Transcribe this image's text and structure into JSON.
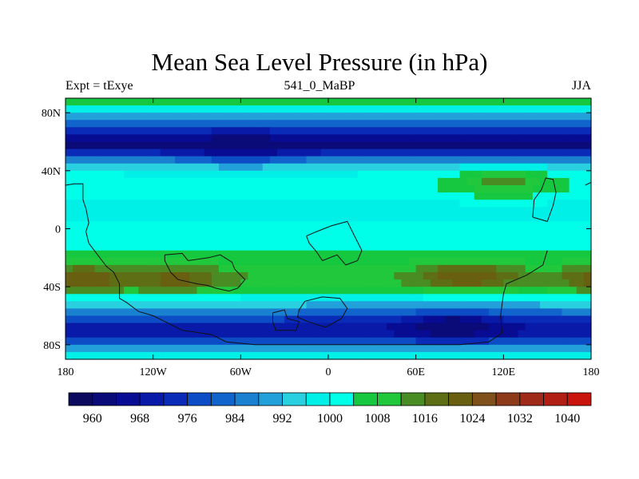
{
  "chart_data": {
    "type": "heatmap",
    "title": "Mean Sea Level Pressure (in hPa)",
    "left_label": "Expt = tExye",
    "center_label": "541_0_MaBP",
    "right_label": "JJA",
    "x_ticks": [
      "180",
      "120W",
      "60W",
      "0",
      "60E",
      "120E",
      "180"
    ],
    "x_tick_values": [
      -180,
      -120,
      -60,
      0,
      60,
      120,
      180
    ],
    "y_ticks": [
      "80N",
      "40N",
      "0",
      "40S",
      "80S"
    ],
    "y_tick_values": [
      80,
      40,
      0,
      -40,
      -80
    ],
    "xlim": [
      -180,
      180
    ],
    "ylim": [
      -90,
      90
    ],
    "colorbar": {
      "levels": [
        956,
        960,
        964,
        968,
        972,
        976,
        980,
        984,
        988,
        992,
        996,
        1000,
        1004,
        1008,
        1012,
        1016,
        1020,
        1024,
        1028,
        1032,
        1036,
        1040,
        1044
      ],
      "tick_labels": [
        "960",
        "968",
        "976",
        "984",
        "992",
        "1000",
        "1008",
        "1016",
        "1024",
        "1032",
        "1040"
      ],
      "tick_values": [
        960,
        968,
        976,
        984,
        992,
        1000,
        1008,
        1016,
        1024,
        1032,
        1040
      ],
      "colors": [
        "#0c0a5e",
        "#0a0a78",
        "#080c92",
        "#0a1aa8",
        "#0a2ab8",
        "#0c4cc4",
        "#1064cc",
        "#1a80d0",
        "#22a0da",
        "#28d0e0",
        "#00f0e8",
        "#00ffe8",
        "#16c840",
        "#22c83c",
        "#4a8c24",
        "#5e6e14",
        "#686010",
        "#80501a",
        "#8c3a1a",
        "#a02a1a",
        "#b01e14",
        "#c8140c"
      ]
    },
    "zonal_profile": [
      {
        "lat": 90,
        "value": 1006
      },
      {
        "lat": 85,
        "value": 1004
      },
      {
        "lat": 80,
        "value": 994
      },
      {
        "lat": 75,
        "value": 986
      },
      {
        "lat": 70,
        "value": 978
      },
      {
        "lat": 65,
        "value": 970
      },
      {
        "lat": 60,
        "value": 962
      },
      {
        "lat": 55,
        "value": 965
      },
      {
        "lat": 50,
        "value": 980
      },
      {
        "lat": 45,
        "value": 990
      },
      {
        "lat": 40,
        "value": 998
      },
      {
        "lat": 35,
        "value": 1002
      },
      {
        "lat": 30,
        "value": 1003
      },
      {
        "lat": 25,
        "value": 1002
      },
      {
        "lat": 20,
        "value": 1000
      },
      {
        "lat": 15,
        "value": 999
      },
      {
        "lat": 10,
        "value": 999
      },
      {
        "lat": 5,
        "value": 1000
      },
      {
        "lat": 0,
        "value": 1001
      },
      {
        "lat": -5,
        "value": 1002
      },
      {
        "lat": -10,
        "value": 1003
      },
      {
        "lat": -15,
        "value": 1004
      },
      {
        "lat": -20,
        "value": 1006
      },
      {
        "lat": -25,
        "value": 1008
      },
      {
        "lat": -30,
        "value": 1010
      },
      {
        "lat": -35,
        "value": 1012
      },
      {
        "lat": -40,
        "value": 1009
      },
      {
        "lat": -45,
        "value": 1003
      },
      {
        "lat": -50,
        "value": 996
      },
      {
        "lat": -55,
        "value": 988
      },
      {
        "lat": -60,
        "value": 980
      },
      {
        "lat": -65,
        "value": 972
      },
      {
        "lat": -70,
        "value": 966
      },
      {
        "lat": -75,
        "value": 972
      },
      {
        "lat": -80,
        "value": 985
      },
      {
        "lat": -85,
        "value": 995
      },
      {
        "lat": -90,
        "value": 1000
      }
    ],
    "features": [
      {
        "name": "north-subtropical-high",
        "lon": 120,
        "lat": 32,
        "value": 1014
      },
      {
        "name": "south-pacific-high",
        "lon": -168,
        "lat": -35,
        "value": 1024
      },
      {
        "name": "south-atlantic-high",
        "lon": -105,
        "lat": -35,
        "value": 1022
      },
      {
        "name": "south-indian-high",
        "lon": 96,
        "lat": -33,
        "value": 1024
      },
      {
        "name": "southern-ocean-low",
        "lon": 86,
        "lat": -67,
        "value": 960
      },
      {
        "name": "north-polar-low",
        "lon": -60,
        "lat": 57,
        "value": 962
      }
    ],
    "coastlines": [
      [
        [
          -174,
          31
        ],
        [
          -168,
          31
        ],
        [
          -168,
          20
        ],
        [
          -166,
          14
        ],
        [
          -164,
          4
        ],
        [
          -166,
          -2
        ],
        [
          -164,
          -10
        ],
        [
          -158,
          -18
        ],
        [
          -152,
          -26
        ],
        [
          -147,
          -30
        ],
        [
          -143,
          -38
        ],
        [
          -143,
          -48
        ],
        [
          -138,
          -51
        ],
        [
          -130,
          -57
        ],
        [
          -120,
          -60
        ],
        [
          -110,
          -65
        ],
        [
          -100,
          -70
        ],
        [
          -80,
          -73
        ],
        [
          -70,
          -78
        ],
        [
          -50,
          -80
        ],
        [
          -30,
          -80
        ],
        [
          0,
          -80
        ],
        [
          60,
          -80
        ],
        [
          90,
          -80
        ],
        [
          110,
          -78
        ],
        [
          119,
          -72
        ],
        [
          118,
          -60
        ],
        [
          120,
          -45
        ],
        [
          122,
          -38
        ],
        [
          136,
          -32
        ],
        [
          147,
          -25
        ],
        [
          150,
          -15
        ]
      ],
      [
        [
          -112,
          -18
        ],
        [
          -100,
          -17
        ],
        [
          -96,
          -22
        ],
        [
          -82,
          -20
        ],
        [
          -74,
          -18
        ],
        [
          -66,
          -23
        ],
        [
          -64,
          -28
        ],
        [
          -57,
          -35
        ],
        [
          -62,
          -41
        ],
        [
          -68,
          -43
        ],
        [
          -77,
          -41
        ],
        [
          -83,
          -39
        ],
        [
          -90,
          -38
        ],
        [
          -103,
          -35
        ],
        [
          -108,
          -30
        ],
        [
          -112,
          -22
        ],
        [
          -112,
          -18
        ]
      ],
      [
        [
          -15,
          -5
        ],
        [
          -8,
          -2
        ],
        [
          2,
          2
        ],
        [
          13,
          5
        ],
        [
          18,
          -5
        ],
        [
          23,
          -15
        ],
        [
          20,
          -22
        ],
        [
          12,
          -25
        ],
        [
          6,
          -18
        ],
        [
          -4,
          -22
        ],
        [
          -8,
          -16
        ],
        [
          -13,
          -10
        ],
        [
          -15,
          -5
        ]
      ],
      [
        [
          -16,
          -50
        ],
        [
          -4,
          -47
        ],
        [
          8,
          -48
        ],
        [
          13,
          -55
        ],
        [
          9,
          -62
        ],
        [
          -2,
          -68
        ],
        [
          -14,
          -64
        ],
        [
          -21,
          -61
        ],
        [
          -20,
          -56
        ],
        [
          -16,
          -50
        ]
      ],
      [
        [
          -38,
          -58
        ],
        [
          -30,
          -56
        ],
        [
          -28,
          -62
        ],
        [
          -20,
          -64
        ],
        [
          -22,
          -70
        ],
        [
          -36,
          -70
        ],
        [
          -38,
          -64
        ],
        [
          -38,
          -58
        ]
      ],
      [
        [
          140,
          8
        ],
        [
          150,
          5
        ],
        [
          154,
          16
        ],
        [
          156,
          25
        ],
        [
          154,
          34
        ],
        [
          149,
          35
        ],
        [
          146,
          27
        ],
        [
          141,
          20
        ],
        [
          140,
          8
        ]
      ],
      [
        [
          176,
          30
        ],
        [
          180,
          32
        ]
      ],
      [
        [
          -180,
          30
        ],
        [
          -174,
          31
        ]
      ]
    ]
  }
}
